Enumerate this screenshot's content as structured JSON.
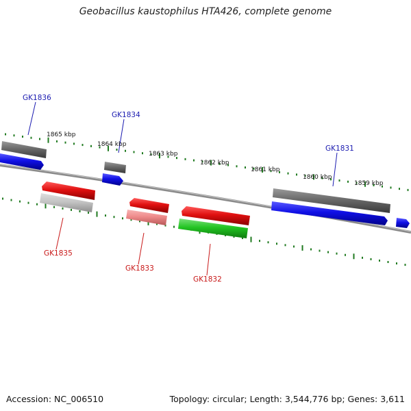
{
  "title": "Geobacillus kaustophilus HTA426, complete genome",
  "accession_text": "Accession: NC_006510",
  "topology_text": "Topology: circular; Length: 3,544,776 bp; Genes: 3,611",
  "colors": {
    "backbone": "#8a8a8a",
    "tick": "#1f7a1f",
    "cds_forward": "#1010e6",
    "cds_reverse": "#e01010",
    "trna": "#22c422",
    "pseudo_gray": "#6a6a6a",
    "light_gray": "#c4c4c4",
    "light_red": "#ee8a8a",
    "label_forward": "#1a1ab0",
    "label_reverse": "#c81818"
  },
  "kbp_labels": [
    "1865 kbp",
    "1864 kbp",
    "1863 kbp",
    "1862 kbp",
    "1861 kbp",
    "1860 kbp",
    "1859 kbp"
  ],
  "gene_labels": {
    "forward": [
      "GK1836",
      "GK1834",
      "GK1831"
    ],
    "reverse": [
      "GK1835",
      "GK1833",
      "GK1832"
    ]
  }
}
